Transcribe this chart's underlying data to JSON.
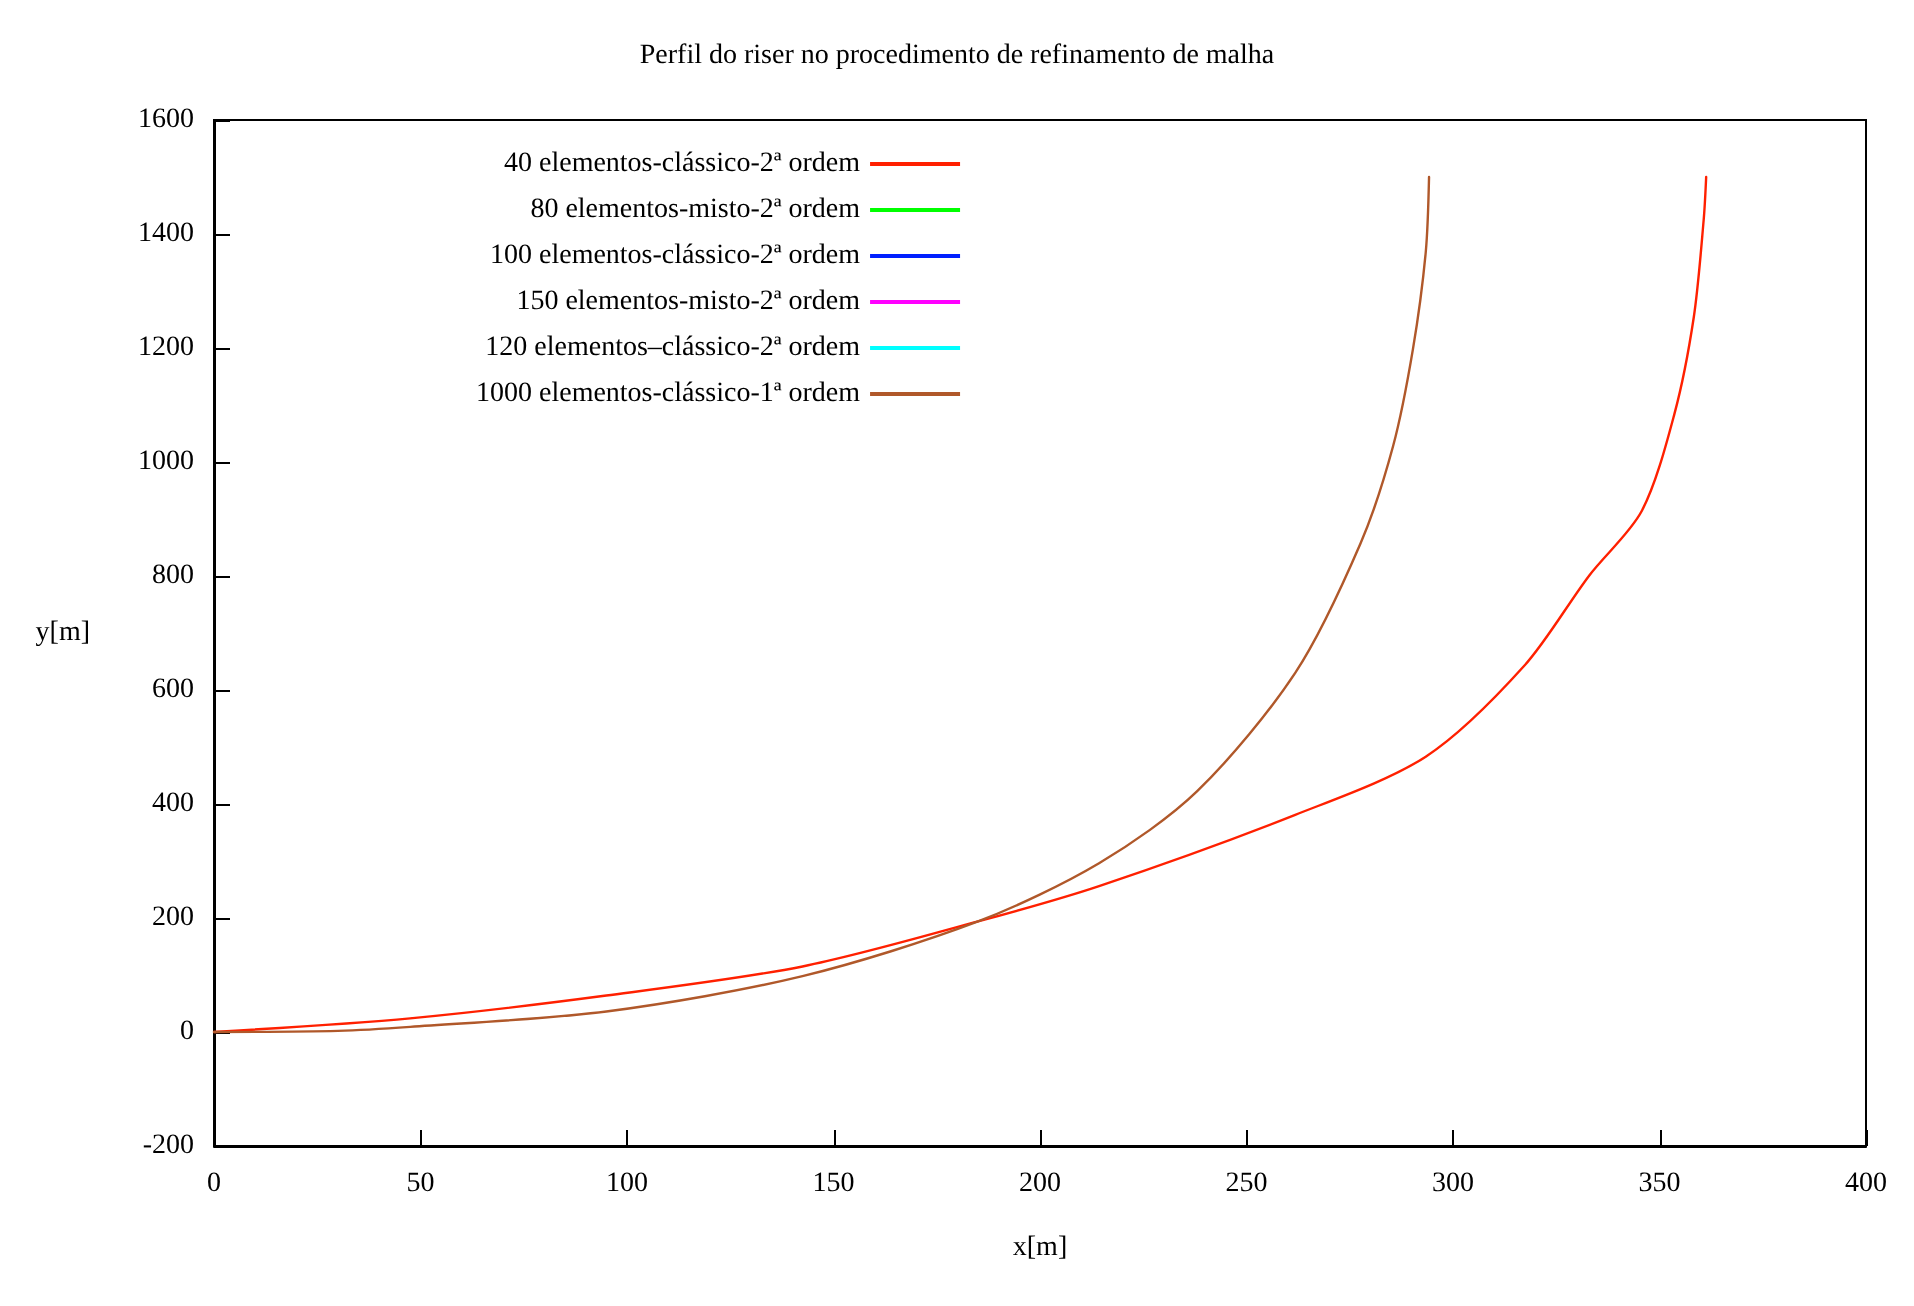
{
  "chart_data": {
    "type": "line",
    "title": "Perfil do riser no procedimento de refinamento de malha",
    "xlabel": "x[m]",
    "ylabel": "y[m]",
    "xlim": [
      0,
      400
    ],
    "xticks": [
      0,
      50,
      100,
      150,
      200,
      250,
      300,
      350,
      400
    ],
    "ylim": [
      -200,
      1600
    ],
    "yticks": [
      -200,
      0,
      200,
      400,
      600,
      800,
      1000,
      1200,
      1400,
      1600
    ],
    "grid": false,
    "legend": "top left",
    "marker": "none",
    "line_style": "solid",
    "series": [
      {
        "name": "40 elementos-clássico-2ª ordem",
        "color": "#ff2000",
        "x": [
          0,
          47.5,
          95,
          142.5,
          185,
          214.3,
          261.8,
          293.4,
          317.2,
          333,
          345.7,
          353.6,
          358.3,
          360.7,
          361.3
        ],
        "values": [
          0,
          24,
          64,
          115,
          194,
          256,
          381,
          483,
          642,
          801,
          914,
          1084,
          1254,
          1425,
          1500
        ]
      },
      {
        "name": "80 elementos-misto-2ª ordem",
        "color": "#00ff00"
      },
      {
        "name": "100 elementos-clássico-2ª ordem",
        "color": "#0020ff"
      },
      {
        "name": "150 elementos-misto-2ª ordem",
        "color": "#ff00ff"
      },
      {
        "name": "120 elementos–clássico-2ª ordem",
        "color": "#00ffff"
      },
      {
        "name": "1000 elementos-clássico-1ª ordem",
        "color": "#b0582a",
        "x": [
          0,
          30,
          47.5,
          95,
          142.5,
          185,
          214.3,
          238,
          261.8,
          277.6,
          285.5,
          290.3,
          293.4,
          294.2
        ],
        "values": [
          0,
          2,
          9,
          36,
          98,
          194,
          296,
          422,
          630,
          857,
          1028,
          1198,
          1368,
          1500
        ]
      }
    ]
  }
}
